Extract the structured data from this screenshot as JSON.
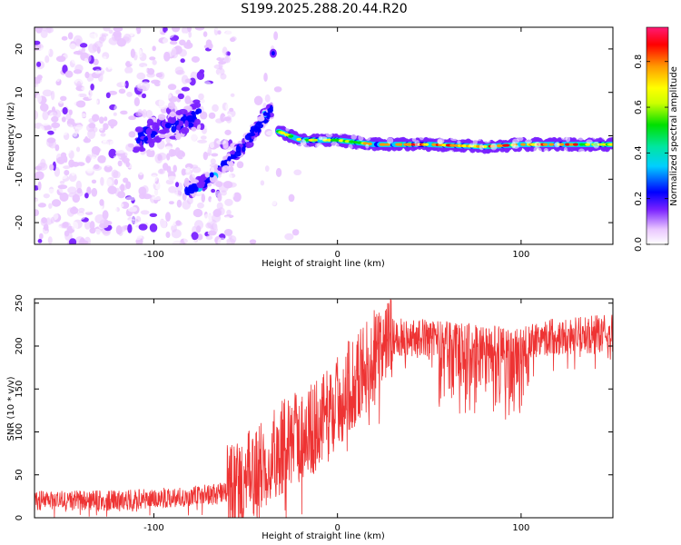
{
  "title": "S199.2025.288.20.44.R20",
  "chart_data": [
    {
      "type": "heatmap",
      "xlabel": "Height of straight line (km)",
      "ylabel": "Frequency (Hz)",
      "xlim": [
        -165,
        150
      ],
      "ylim": [
        -25,
        25
      ],
      "xticks": [
        -100,
        0,
        100
      ],
      "xtick_labels": [
        "-100",
        "0",
        "100"
      ],
      "yticks": [
        -20,
        -10,
        0,
        10,
        20
      ],
      "ytick_labels": [
        "-20",
        "-10",
        "0",
        "10",
        "20"
      ],
      "colorbar": {
        "label": "Normalized spectral amplitude",
        "range": [
          0,
          0.95
        ],
        "ticks": [
          0.0,
          0.2,
          0.4,
          0.6,
          0.8
        ],
        "tick_labels": [
          "0.0",
          "0.2",
          "0.4",
          "0.6",
          "0.8"
        ]
      },
      "features": {
        "noise_region_x": [
          -165,
          -57
        ],
        "rising_arm": [
          [
            -82,
            -13
          ],
          [
            -70,
            -10
          ],
          [
            -60,
            -6
          ],
          [
            -50,
            -2
          ],
          [
            -42,
            3
          ],
          [
            -36,
            6
          ]
        ],
        "upper_arm": [
          [
            -110,
            -1
          ],
          [
            -95,
            2
          ],
          [
            -85,
            3
          ],
          [
            -75,
            5
          ]
        ],
        "spike": [
          -35,
          19
        ],
        "main_line": [
          [
            -32,
            1
          ],
          [
            -20,
            -1
          ],
          [
            0,
            -1
          ],
          [
            20,
            -2
          ],
          [
            50,
            -2
          ],
          [
            80,
            -2.5
          ],
          [
            100,
            -2
          ],
          [
            150,
            -2
          ]
        ]
      }
    },
    {
      "type": "line",
      "xlabel": "Height of straight line (km)",
      "ylabel": "SNR (10 * v/v)",
      "xlim": [
        -165,
        150
      ],
      "ylim": [
        0,
        255
      ],
      "xticks": [
        -100,
        0,
        100
      ],
      "xtick_labels": [
        "-100",
        "0",
        "100"
      ],
      "yticks": [
        0,
        50,
        100,
        150,
        200,
        250
      ],
      "ytick_labels": [
        "0",
        "50",
        "100",
        "150",
        "200",
        "250"
      ],
      "color": "#ee3333",
      "trend": {
        "x": [
          -165,
          -120,
          -80,
          -60,
          -45,
          -35,
          -25,
          -15,
          -5,
          5,
          15,
          25,
          30,
          50,
          70,
          100,
          110,
          150
        ],
        "y": [
          20,
          20,
          25,
          30,
          50,
          75,
          90,
          100,
          120,
          150,
          175,
          200,
          210,
          210,
          205,
          200,
          210,
          215
        ]
      },
      "notch": {
        "x": [
          55,
          105
        ],
        "depth": 55
      }
    }
  ]
}
